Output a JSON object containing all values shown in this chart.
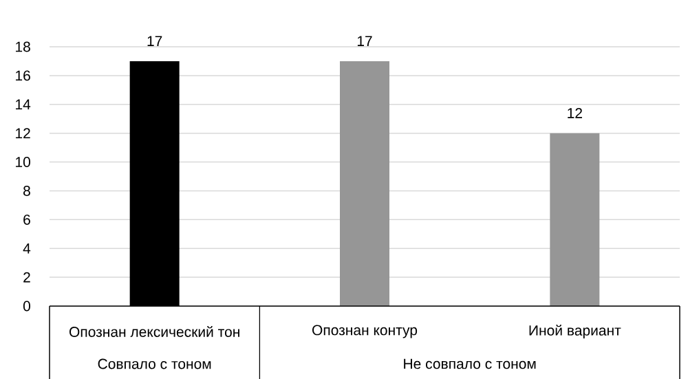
{
  "chart_data": {
    "type": "bar",
    "categories": [
      "Опознан лексический тон",
      "Опознан контур",
      "Иной вариант"
    ],
    "values": [
      17,
      17,
      12
    ],
    "colors": [
      "#000000",
      "#969696",
      "#969696"
    ],
    "ylim": [
      0,
      18
    ],
    "yticks": [
      0,
      2,
      4,
      6,
      8,
      10,
      12,
      14,
      16,
      18
    ],
    "grid": "y",
    "data_labels": true,
    "annotations": [
      "Совпало с тоном",
      "Не совпало с тоном"
    ]
  }
}
